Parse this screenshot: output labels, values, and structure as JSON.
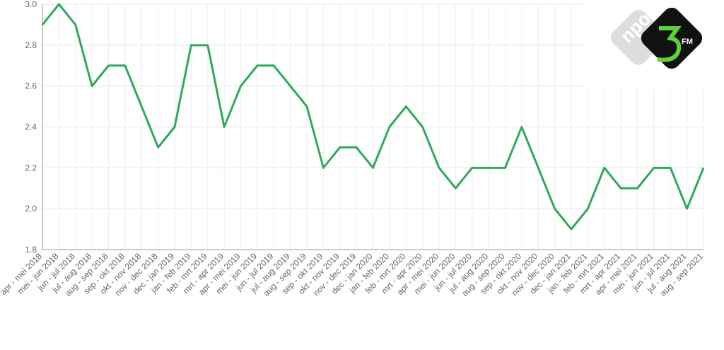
{
  "chart_data": {
    "type": "line",
    "categories": [
      "apr - mei 2018",
      "mei - jun 2018",
      "jun - jul 2018",
      "jul - aug 2018",
      "aug - sep 2018",
      "sep - okt 2018",
      "okt - nov 2018",
      "nov - dec 2018",
      "dec - jan 2019",
      "jan - feb 2019",
      "feb - mrt 2019",
      "mrt - apr 2019",
      "apr - mei 2019",
      "mei - jun 2019",
      "jun - jul 2019",
      "jul - aug 2019",
      "aug - sep 2019",
      "sep - okt 2019",
      "okt - nov 2019",
      "nov - dec 2019",
      "dec - jan 2020",
      "jan - feb 2020",
      "feb - mrt 2020",
      "mrt - apr 2020",
      "apr - mei 2020",
      "mei - jun 2020",
      "jun - jul 2020",
      "jul - aug 2020",
      "aug - sep 2020",
      "sep - okt 2020",
      "okt - nov 2020",
      "nov - dec 2020",
      "dec - jan 2021",
      "jan - feb 2021",
      "feb - mrt 2021",
      "mrt - apr 2021",
      "apr - mei 2021",
      "mei - jun 2021",
      "jun - jul 2021",
      "jul - aug 2021",
      "aug - sep 2021"
    ],
    "values": [
      2.9,
      3.0,
      2.9,
      2.6,
      2.7,
      2.7,
      2.5,
      2.3,
      2.4,
      2.8,
      2.8,
      2.4,
      2.6,
      2.7,
      2.7,
      2.6,
      2.5,
      2.2,
      2.3,
      2.3,
      2.2,
      2.4,
      2.5,
      2.4,
      2.2,
      2.1,
      2.2,
      2.2,
      2.2,
      2.4,
      2.2,
      2.0,
      1.9,
      2.0,
      2.2,
      2.1,
      2.1,
      2.2,
      2.2,
      2.0,
      2.2
    ],
    "color": "#2eaa5c",
    "ylim": [
      1.8,
      3.0
    ],
    "yticks": [
      {
        "value": 1.8,
        "label": "1.8"
      },
      {
        "value": 2,
        "label": "2.0"
      },
      {
        "value": 2.2,
        "label": "2.2"
      },
      {
        "value": 2.4,
        "label": "2.4"
      },
      {
        "value": 2.6,
        "label": "2.6"
      },
      {
        "value": 2.8,
        "label": "2.8"
      },
      {
        "value": 3,
        "label": "3.0"
      }
    ],
    "grid": true
  },
  "logo": {
    "npo": "npo",
    "fm": "FM"
  }
}
